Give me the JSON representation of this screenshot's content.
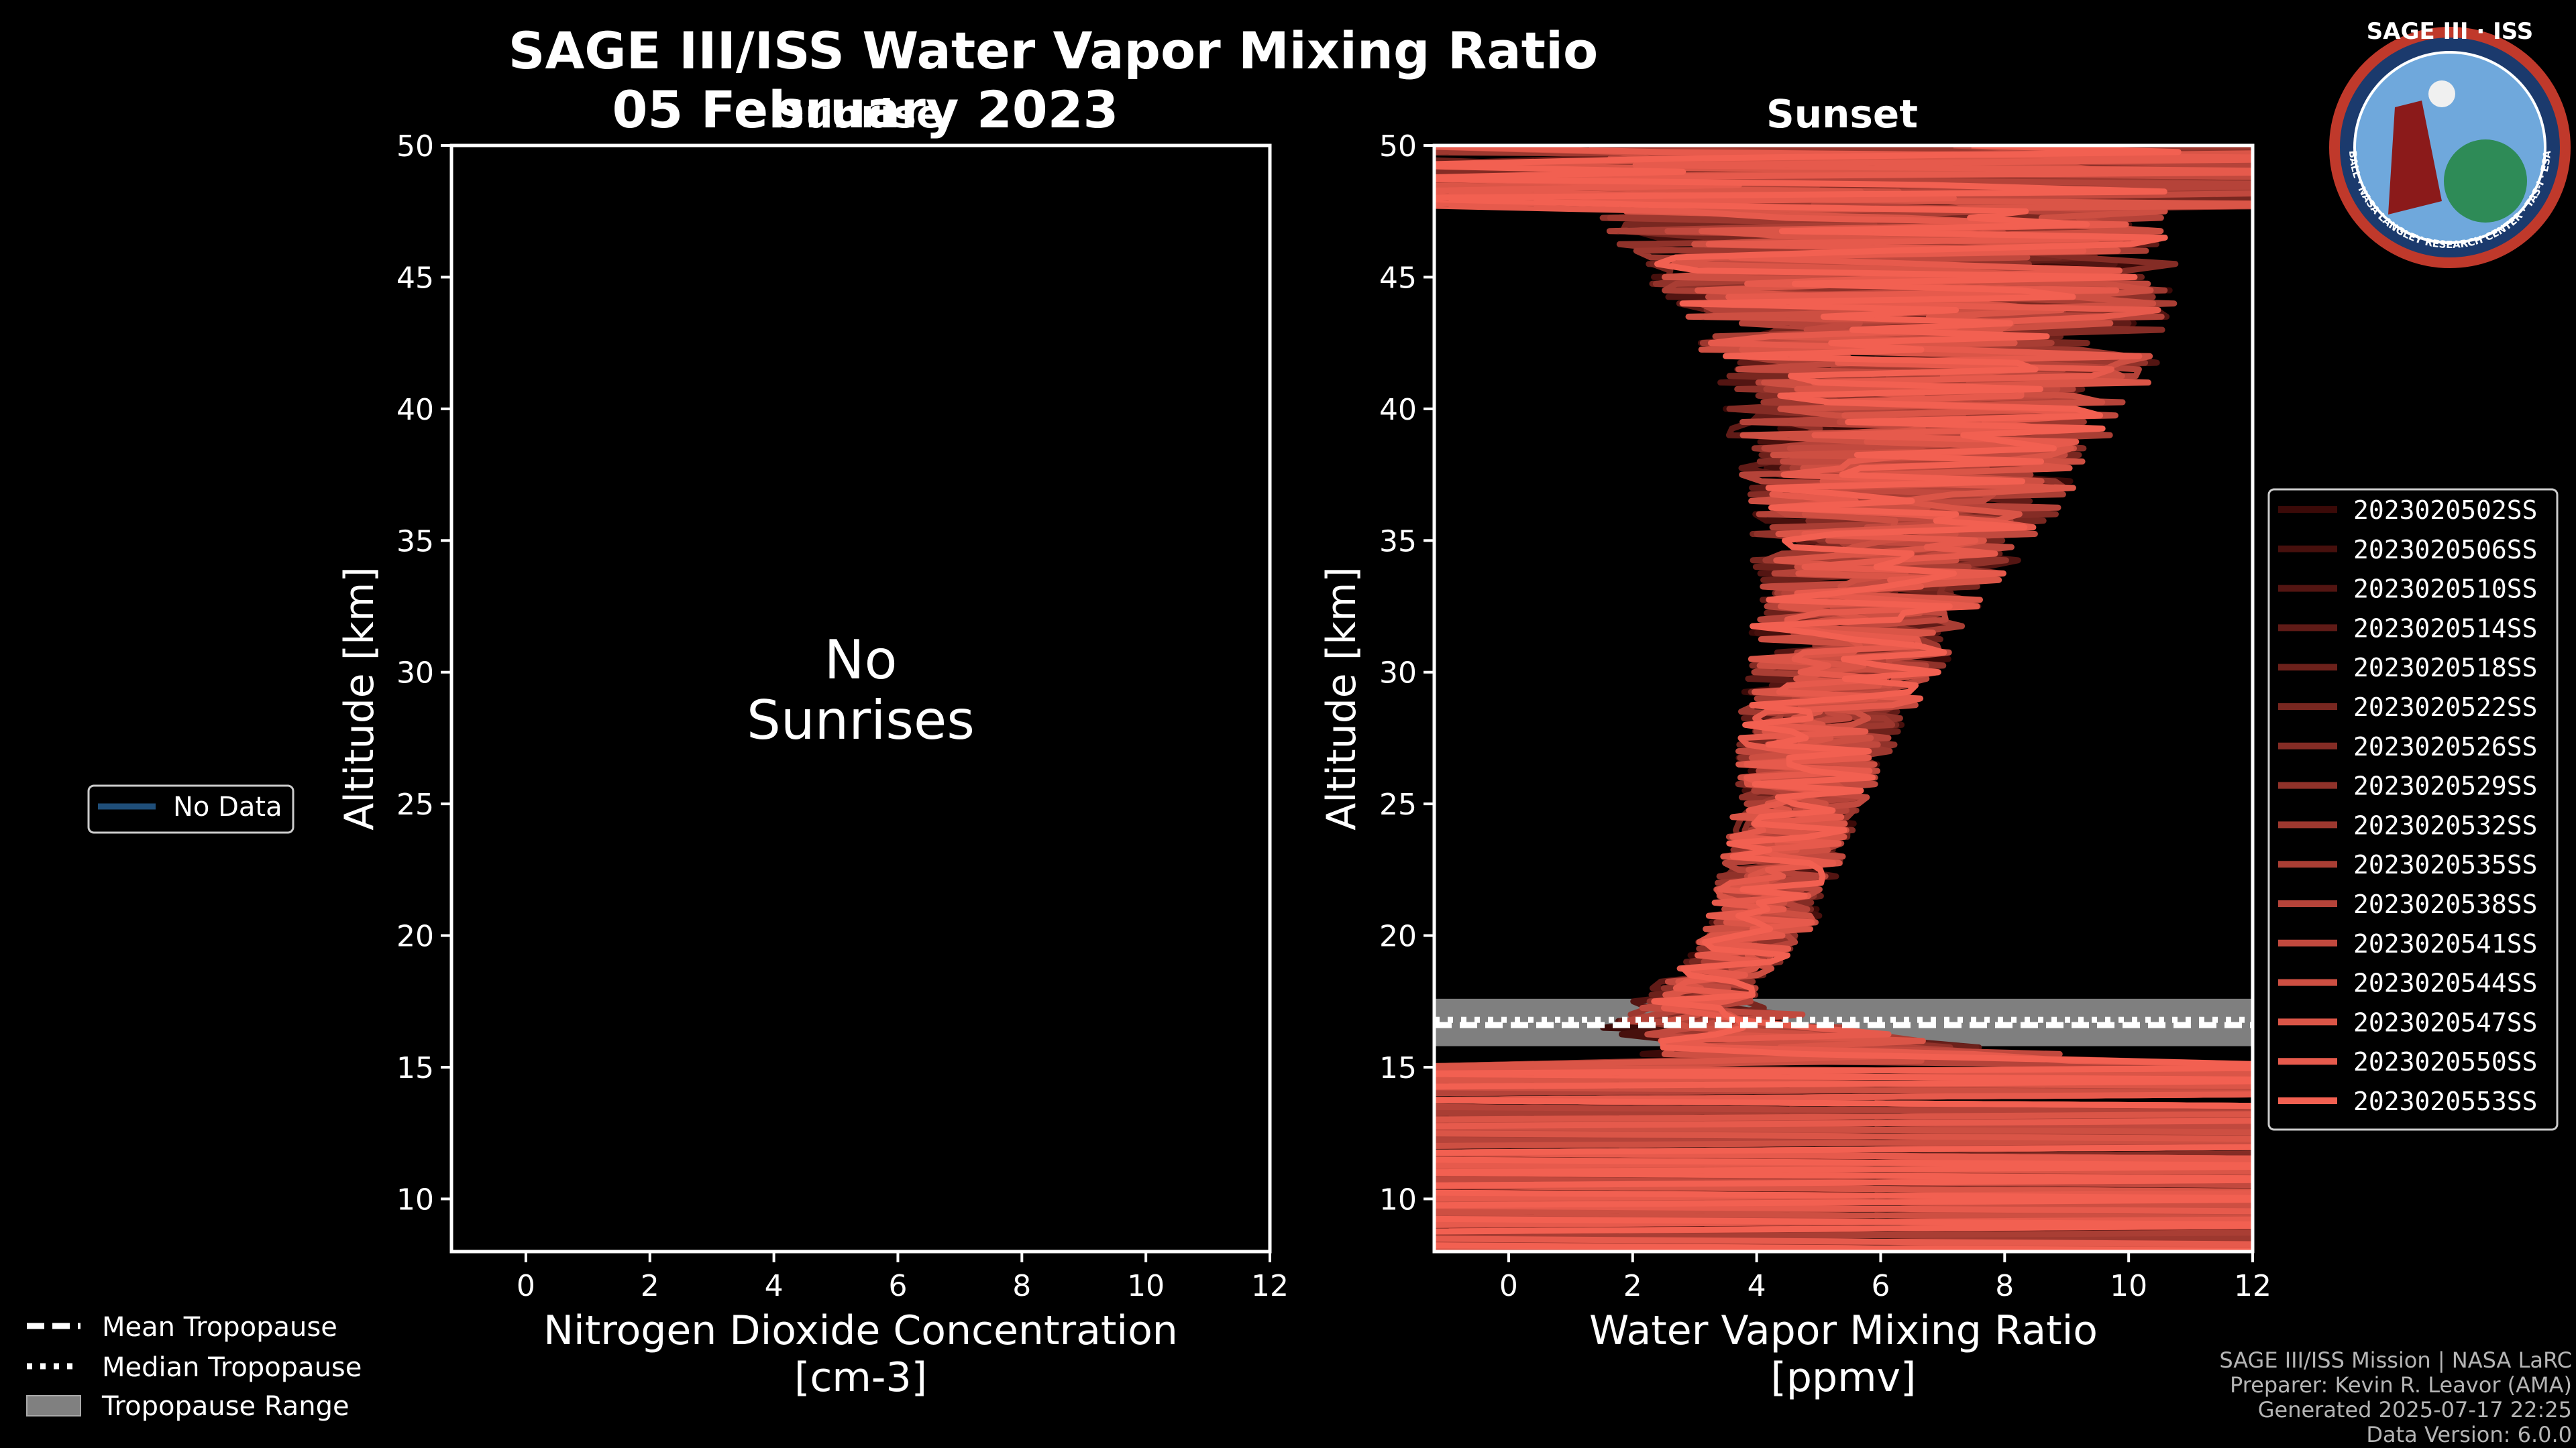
{
  "figure": {
    "title": "SAGE III/ISS Water Vapor Mixing Ratio",
    "date": "05 February 2023",
    "sunrise_label": "Sunrise",
    "sunset_label": "Sunset"
  },
  "logo": {
    "text": "SAGE III · ISS",
    "ring_text": "BALL · NASA LANGLEY RESEARCH CENTER · TAS-I · ESA"
  },
  "left_legend": {
    "no_data": "No Data"
  },
  "bottom_legend": {
    "mean": "Mean Tropopause",
    "median": "Median Tropopause",
    "range": "Tropopause Range"
  },
  "credits": {
    "line1": "SAGE III/ISS Mission | NASA LaRC",
    "line2": "Preparer: Kevin R. Leavor (AMA)",
    "line3": "Generated 2025-07-17 22:25",
    "line4": "Data Version: 6.0.0"
  },
  "colors": {
    "background": "#000000",
    "axis": "#ffffff",
    "no_data_line": "#1f4e79",
    "tropopause_band": "#7f7f7f",
    "profile_dark": "#3b0a08",
    "profile_light": "#f26051"
  },
  "chart_data": [
    {
      "type": "line",
      "panel": "sunrise",
      "title": "Sunrise",
      "xlabel": "Nitrogen Dioxide Concentration",
      "xunits": "[cm-3]",
      "ylabel": "Altitude [km]",
      "xlim": [
        -1.2,
        12
      ],
      "ylim": [
        8,
        50
      ],
      "xticks": [
        "0",
        "2",
        "4",
        "6",
        "8",
        "10",
        "12"
      ],
      "yticks": [
        "10",
        "15",
        "20",
        "25",
        "30",
        "35",
        "40",
        "45",
        "50"
      ],
      "annotation": [
        "No",
        "Sunrises"
      ],
      "series": []
    },
    {
      "type": "line",
      "panel": "sunset",
      "title": "Sunset",
      "xlabel": "Water Vapor Mixing Ratio",
      "xunits": "[ppmv]",
      "ylabel": "Altitude [km]",
      "xlim": [
        -1.2,
        12
      ],
      "ylim": [
        8,
        50
      ],
      "xticks": [
        "0",
        "2",
        "4",
        "6",
        "8",
        "10",
        "12"
      ],
      "yticks": [
        "10",
        "15",
        "20",
        "25",
        "30",
        "35",
        "40",
        "45",
        "50"
      ],
      "tropopause": {
        "mean": 16.6,
        "median": 16.8,
        "range": [
          15.8,
          17.6
        ]
      },
      "series_names": [
        "2023020502SS",
        "2023020506SS",
        "2023020510SS",
        "2023020514SS",
        "2023020518SS",
        "2023020522SS",
        "2023020526SS",
        "2023020529SS",
        "2023020532SS",
        "2023020535SS",
        "2023020538SS",
        "2023020541SS",
        "2023020544SS",
        "2023020547SS",
        "2023020550SS",
        "2023020553SS"
      ],
      "altitude_km": [
        9.5,
        11,
        12.5,
        14,
        15.5,
        16.5,
        17.5,
        18.5,
        19.5,
        20.5,
        21.5,
        22.5,
        23.5,
        24.5,
        25.5,
        26.5,
        27.5,
        28.5,
        29.5,
        30.5,
        31.5,
        32.5,
        33.5,
        34.5,
        35.5,
        36.5,
        37.5,
        38.5,
        39.5,
        40.5,
        41.5,
        42.5,
        43.5,
        44.5,
        45.5,
        46.5,
        47.5,
        48.5,
        49.5
      ],
      "mean_profile_ppmv": [
        12,
        12,
        12,
        10,
        5.5,
        3.5,
        3.0,
        3.4,
        3.8,
        4.1,
        4.2,
        4.4,
        4.5,
        4.6,
        4.8,
        4.9,
        5.0,
        5.1,
        5.3,
        5.5,
        5.6,
        5.8,
        6.0,
        6.1,
        6.3,
        6.4,
        6.5,
        6.6,
        6.7,
        6.8,
        6.9,
        6.8,
        6.7,
        6.6,
        6.4,
        6.3,
        6.2,
        6.0,
        5.9
      ],
      "spread_ppmv": [
        6.5,
        6.5,
        6.5,
        6.0,
        3.5,
        2.0,
        1.0,
        0.8,
        0.8,
        0.9,
        0.9,
        1.0,
        1.0,
        1.0,
        1.1,
        1.2,
        1.3,
        1.4,
        1.5,
        1.6,
        1.7,
        1.8,
        2.0,
        2.2,
        2.4,
        2.6,
        2.8,
        3.0,
        3.2,
        3.4,
        3.6,
        3.8,
        4.0,
        4.2,
        4.4,
        4.6,
        4.8,
        5.0,
        5.2
      ]
    }
  ]
}
